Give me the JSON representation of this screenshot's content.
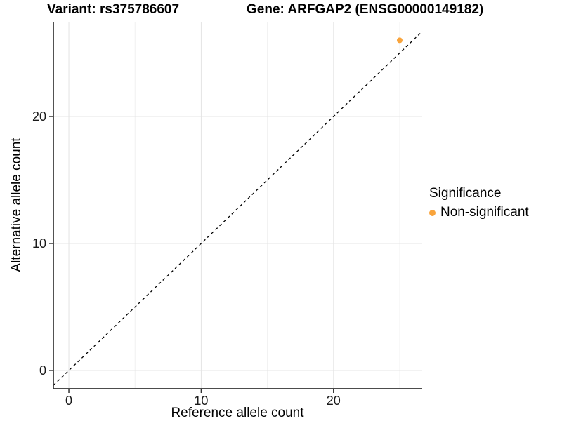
{
  "titles": {
    "variant": "Variant: rs375786607",
    "gene": "Gene: ARFGAP2 (ENSG00000149182)"
  },
  "axes": {
    "x": {
      "label": "Reference allele count",
      "major_ticks": [
        0,
        10,
        20
      ],
      "minor_ticks": [
        5,
        15,
        25
      ],
      "range": [
        -1.17,
        26.7
      ]
    },
    "y": {
      "label": "Alternative allele count",
      "major_ticks": [
        0,
        10,
        20
      ],
      "minor_ticks": [
        5,
        15,
        25
      ],
      "range": [
        -1.44,
        27.46
      ]
    }
  },
  "legend": {
    "title": "Significance",
    "items": [
      {
        "label": "Non-significant",
        "color": "#F9A43C"
      }
    ]
  },
  "colors": {
    "point": "#F9A43C",
    "major_grid": "#E4E4E4",
    "minor_grid": "#F0F0F0",
    "axis_line": "#333333",
    "tick_mark": "#333333",
    "dashed_line": "#000000",
    "background": "#FFFFFF"
  },
  "chart_data": {
    "type": "scatter",
    "title": "Variant: rs375786607 | Gene: ARFGAP2 (ENSG00000149182)",
    "xlabel": "Reference allele count",
    "ylabel": "Alternative allele count",
    "xlim": [
      -1.17,
      26.7
    ],
    "ylim": [
      -1.44,
      27.46
    ],
    "x_ticks": [
      0,
      10,
      20
    ],
    "y_ticks": [
      0,
      10,
      20
    ],
    "grid": true,
    "legend_position": "right",
    "series": [
      {
        "name": "Non-significant",
        "color": "#F9A43C",
        "points": [
          [
            25,
            26
          ]
        ]
      }
    ],
    "annotations": [
      {
        "type": "reference-line",
        "equation": "y = x",
        "style": "dashed",
        "color": "#000000"
      }
    ]
  }
}
